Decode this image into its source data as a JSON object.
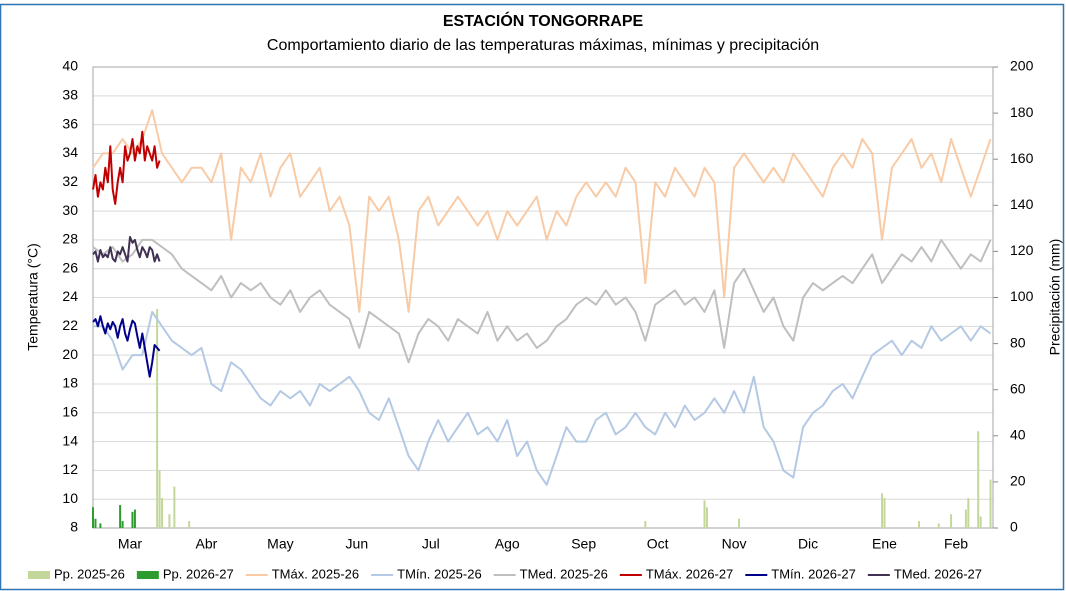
{
  "chart_data": {
    "type": "line",
    "title": "ESTACIÓN TONGORRAPE",
    "subtitle": "Comportamiento diario de las temperaturas máximas, mínimas y precipitación",
    "ylabel": "Temperatura (°C)",
    "y2label": "Precipitación (mm)",
    "xlim": [
      0,
      365
    ],
    "xticks": [
      {
        "value": 15,
        "label": "Mar"
      },
      {
        "value": 46,
        "label": "Abr"
      },
      {
        "value": 76,
        "label": "May"
      },
      {
        "value": 107,
        "label": "Jun"
      },
      {
        "value": 137,
        "label": "Jul"
      },
      {
        "value": 168,
        "label": "Ago"
      },
      {
        "value": 199,
        "label": "Sep"
      },
      {
        "value": 229,
        "label": "Oct"
      },
      {
        "value": 260,
        "label": "Nov"
      },
      {
        "value": 290,
        "label": "Dic"
      },
      {
        "value": 321,
        "label": "Ene"
      },
      {
        "value": 350,
        "label": "Feb"
      }
    ],
    "ylim": [
      8,
      40
    ],
    "yticks": [
      8,
      10,
      12,
      14,
      16,
      18,
      20,
      22,
      24,
      26,
      28,
      30,
      32,
      34,
      36,
      38,
      40
    ],
    "y2lim": [
      0,
      200
    ],
    "y2ticks": [
      0,
      20,
      40,
      60,
      80,
      100,
      120,
      140,
      160,
      180,
      200
    ],
    "grid": true,
    "legend": "bottom",
    "x": [
      0,
      4,
      8,
      12,
      16,
      20,
      24,
      28,
      32,
      36,
      40,
      44,
      48,
      52,
      56,
      60,
      64,
      68,
      72,
      76,
      80,
      84,
      88,
      92,
      96,
      100,
      104,
      108,
      112,
      116,
      120,
      124,
      128,
      132,
      136,
      140,
      144,
      148,
      152,
      156,
      160,
      164,
      168,
      172,
      176,
      180,
      184,
      188,
      192,
      196,
      200,
      204,
      208,
      212,
      216,
      220,
      224,
      228,
      232,
      236,
      240,
      244,
      248,
      252,
      256,
      260,
      264,
      268,
      272,
      276,
      280,
      284,
      288,
      292,
      296,
      300,
      304,
      308,
      312,
      316,
      320,
      324,
      328,
      332,
      336,
      340,
      344,
      348,
      352,
      356,
      360,
      364
    ],
    "series": [
      {
        "name": "Pp. 2025-26",
        "type": "bar",
        "axis": "y2",
        "color": "#c4d79b",
        "x": [
          26,
          27,
          28,
          31,
          33,
          39,
          224,
          248,
          249,
          262,
          320,
          321,
          335,
          343,
          348,
          354,
          355,
          359,
          360,
          364
        ],
        "values": [
          95,
          25,
          13,
          6,
          18,
          3,
          3,
          12,
          9,
          4,
          15,
          13,
          3,
          2,
          6,
          8,
          13,
          42,
          5,
          21
        ]
      },
      {
        "name": "Pp. 2026-27",
        "type": "bar",
        "axis": "y2",
        "color": "#2e9b2e",
        "x": [
          0,
          1,
          3,
          11,
          12,
          16,
          17
        ],
        "values": [
          9,
          4,
          2,
          10,
          3,
          7,
          8
        ]
      },
      {
        "name": "TMáx. 2025-26",
        "color": "#f8cba6",
        "values": [
          33,
          34,
          34,
          35,
          34,
          35,
          37,
          34,
          33,
          32,
          33,
          33,
          32,
          34,
          28,
          33,
          32,
          34,
          31,
          33,
          34,
          31,
          32,
          33,
          30,
          31,
          29,
          23,
          31,
          30,
          31,
          28,
          23,
          30,
          31,
          29,
          30,
          31,
          30,
          29,
          30,
          28,
          30,
          29,
          30,
          31,
          28,
          30,
          29,
          31,
          32,
          31,
          32,
          31,
          33,
          32,
          25,
          32,
          31,
          33,
          32,
          31,
          33,
          32,
          24,
          33,
          34,
          33,
          32,
          33,
          32,
          34,
          33,
          32,
          31,
          33,
          34,
          33,
          35,
          34,
          28,
          33,
          34,
          35,
          33,
          34,
          32,
          35,
          33,
          31,
          33,
          35
        ]
      },
      {
        "name": "TMín. 2025-26",
        "color": "#b4c9e4",
        "values": [
          22,
          22,
          21,
          19,
          20,
          20,
          23,
          22,
          21,
          20.5,
          20,
          20.5,
          18,
          17.5,
          19.5,
          19,
          18,
          17,
          16.5,
          17.5,
          17,
          17.5,
          16.5,
          18,
          17.5,
          18,
          18.5,
          17.5,
          16,
          15.5,
          17,
          15,
          13,
          12,
          14,
          15.5,
          14,
          15,
          16,
          14.5,
          15,
          14,
          15.5,
          13,
          14,
          12,
          11,
          13,
          15,
          14,
          14,
          15.5,
          16,
          14.5,
          15,
          16,
          15,
          14.5,
          16,
          15,
          16.5,
          15.5,
          16,
          17,
          16,
          17.5,
          16,
          18.5,
          15,
          14,
          12,
          11.5,
          15,
          16,
          16.5,
          17.5,
          18,
          17,
          18.5,
          20,
          20.5,
          21,
          20,
          21,
          20.5,
          22,
          21,
          21.5,
          22,
          21,
          22,
          21.5
        ]
      },
      {
        "name": "TMed. 2025-26",
        "color": "#bfbfbf",
        "values": [
          27.5,
          27,
          27.5,
          26.5,
          27,
          28,
          28,
          27.5,
          27,
          26,
          25.5,
          25,
          24.5,
          25.5,
          24,
          25,
          24.5,
          25,
          24,
          23.5,
          24.5,
          23,
          24,
          24.5,
          23.5,
          23,
          22.5,
          20.5,
          23,
          22.5,
          22,
          21.5,
          19.5,
          21.5,
          22.5,
          22,
          21,
          22.5,
          22,
          21.5,
          23,
          21,
          22,
          21,
          21.5,
          20.5,
          21,
          22,
          22.5,
          23.5,
          24,
          23.5,
          24.5,
          23.5,
          24,
          23,
          21,
          23.5,
          24,
          24.5,
          23.5,
          24,
          23,
          24.5,
          20.5,
          25,
          26,
          24.5,
          23,
          24,
          22,
          21,
          24,
          25,
          24.5,
          25,
          25.5,
          25,
          26,
          27,
          25,
          26,
          27,
          26.5,
          27.5,
          26.5,
          28,
          27,
          26,
          27,
          26.5,
          28
        ]
      },
      {
        "name": "TMáx. 2026-27",
        "color": "#c00000",
        "x": [
          0,
          1,
          2,
          3,
          4,
          5,
          6,
          7,
          8,
          9,
          10,
          11,
          12,
          13,
          14,
          15,
          16,
          17,
          18,
          19,
          20,
          21,
          22,
          23,
          24,
          25,
          26,
          27
        ],
        "values": [
          31.5,
          32.5,
          31,
          32,
          31.5,
          33,
          32,
          34.5,
          31.5,
          30.5,
          32,
          33,
          32,
          34.5,
          33.5,
          34,
          35,
          33.5,
          34.5,
          34,
          35.5,
          33.5,
          34.5,
          34,
          33.5,
          34.5,
          33,
          33.5
        ]
      },
      {
        "name": "TMín. 2026-27",
        "color": "#00008b",
        "x": [
          0,
          1,
          2,
          3,
          4,
          5,
          6,
          7,
          8,
          9,
          10,
          11,
          12,
          13,
          14,
          15,
          16,
          17,
          18,
          19,
          20,
          21,
          22,
          23,
          24,
          25,
          26,
          27
        ],
        "values": [
          22.3,
          22.5,
          22,
          22.7,
          22,
          21.5,
          22.2,
          21.8,
          22.3,
          22,
          21.2,
          22,
          22.5,
          21.5,
          21,
          21.8,
          22.4,
          22.2,
          21.3,
          20.5,
          21.5,
          20.5,
          19.5,
          18.5,
          19.5,
          20.7,
          20.5,
          20.3
        ]
      },
      {
        "name": "TMed. 2026-27",
        "color": "#403152",
        "x": [
          0,
          1,
          2,
          3,
          4,
          5,
          6,
          7,
          8,
          9,
          10,
          11,
          12,
          13,
          14,
          15,
          16,
          17,
          18,
          19,
          20,
          21,
          22,
          23,
          24,
          25,
          26,
          27
        ],
        "values": [
          27,
          27.2,
          26.5,
          27.3,
          26.8,
          27,
          26.8,
          27.5,
          26.7,
          26.5,
          27.2,
          27,
          27.5,
          27,
          26.5,
          28.2,
          27.8,
          28,
          27.3,
          26.8,
          27.5,
          27.2,
          26.8,
          27.5,
          27.3,
          26.5,
          27,
          26.5
        ]
      }
    ]
  }
}
